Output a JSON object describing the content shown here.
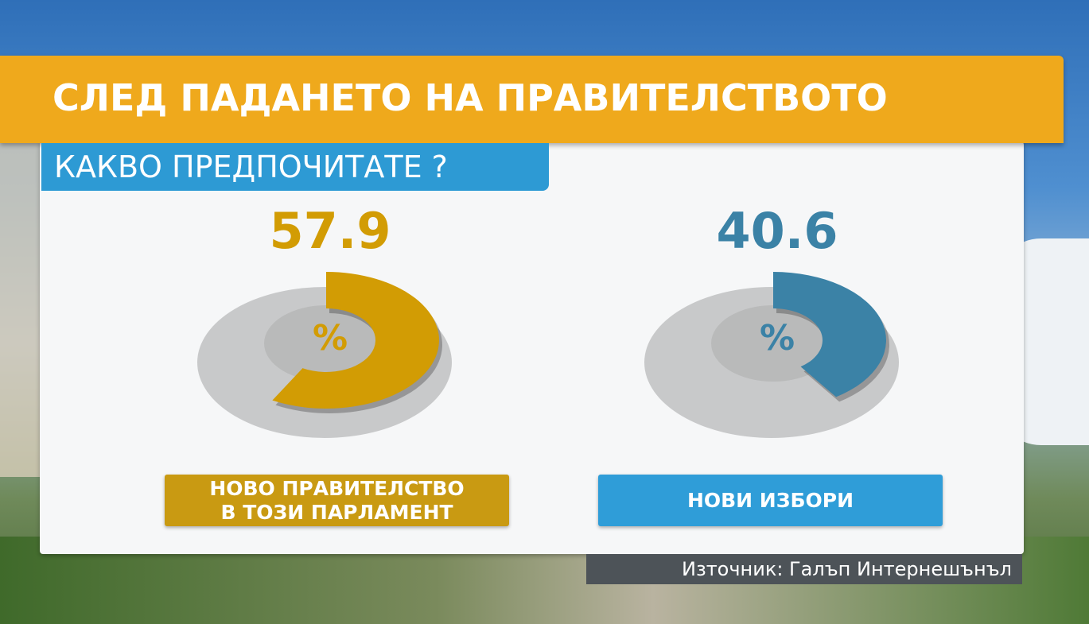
{
  "title": "СЛЕД ПАДАНЕТО НА ПРАВИТЕЛСТВОТО",
  "subtitle": "КАКВО ПРЕДПОЧИТАТЕ ?",
  "source": "Източник: Галъп Интернешънъл",
  "chart_data": [
    {
      "type": "pie",
      "categories": [
        "НОВО ПРАВИТЕЛСТВО\nВ ТОЗИ ПАРЛАМЕНТ"
      ],
      "values": [
        57.9
      ],
      "unit": "%",
      "color": "#d29c04",
      "label_color": "#c99a12"
    },
    {
      "type": "pie",
      "categories": [
        "НОВИ ИЗБОРИ"
      ],
      "values": [
        40.6
      ],
      "unit": "%",
      "color": "#3b82a6",
      "label_color": "#2f9dd8"
    }
  ]
}
